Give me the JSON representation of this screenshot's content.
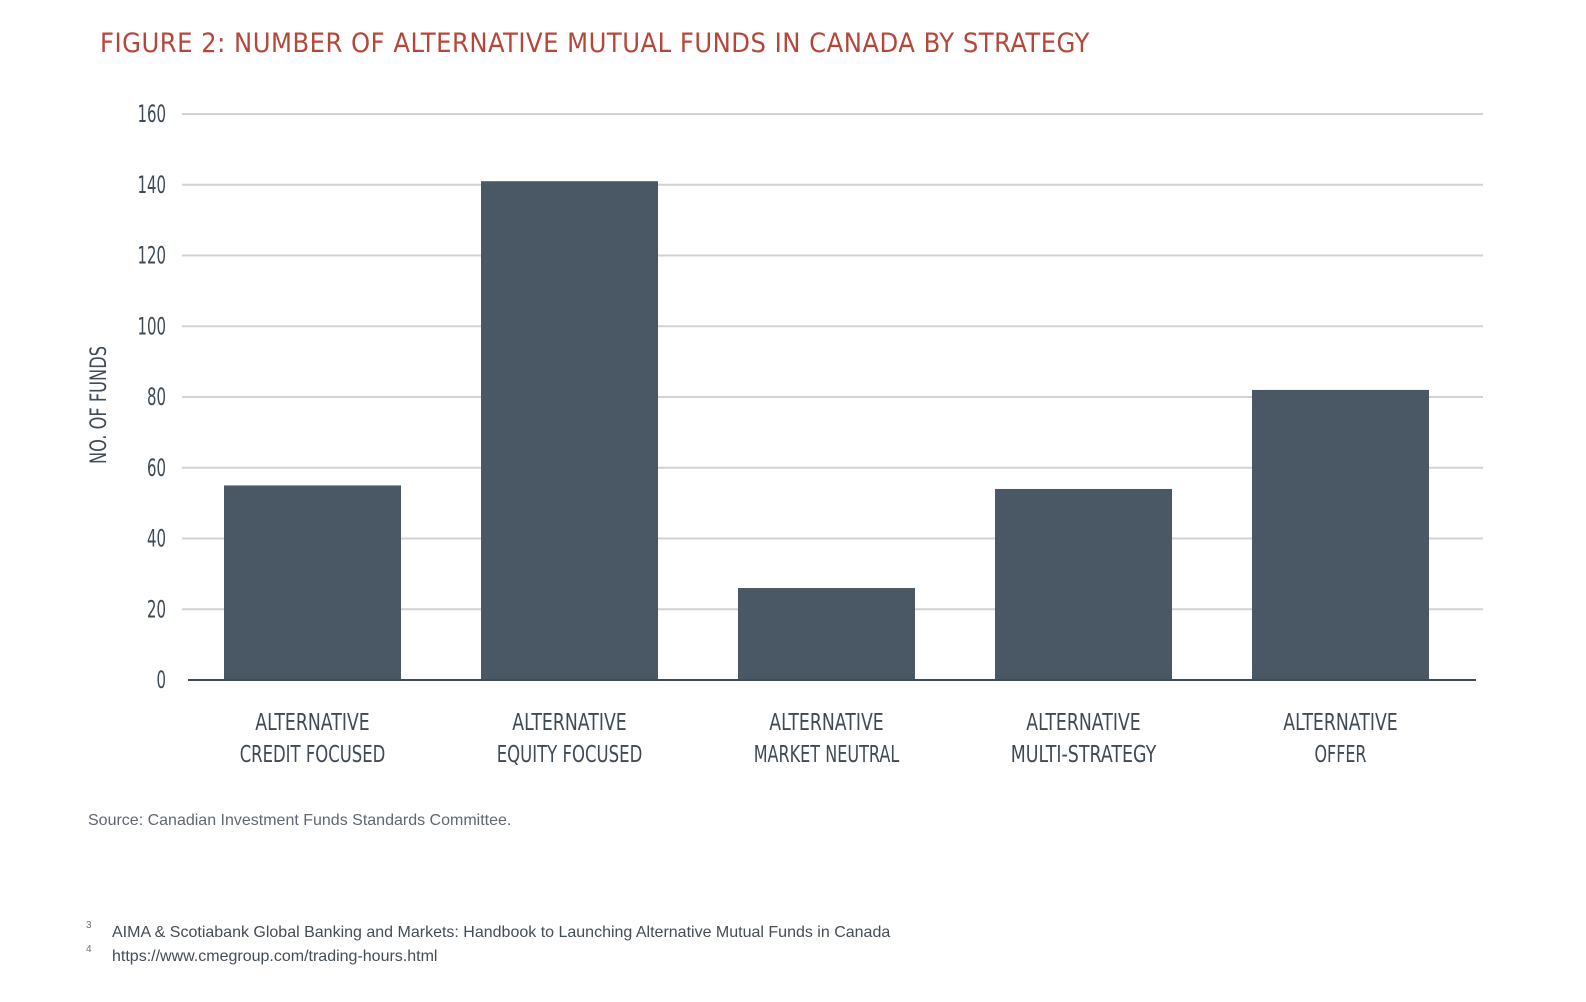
{
  "title": "FIGURE 2: NUMBER OF ALTERNATIVE MUTUAL FUNDS IN CANADA BY STRATEGY",
  "source": "Source: Canadian Investment Funds Standards Committee.",
  "footnotes": [
    {
      "number": "3",
      "text": "AIMA & Scotiabank Global Banking and Markets: Handbook to Launching Alternative Mutual Funds in Canada"
    },
    {
      "number": "4",
      "text": "https://www.cmegroup.com/trading-hours.html"
    }
  ],
  "colors": {
    "title": "#b5473a",
    "bar": "#4a5865",
    "grid": "#d0d3d6",
    "axis": "#3f4a55"
  },
  "chart_data": {
    "type": "bar",
    "title": "FIGURE 2: NUMBER OF ALTERNATIVE MUTUAL FUNDS IN CANADA BY STRATEGY",
    "xlabel": "",
    "ylabel": "NO. OF FUNDS",
    "categories": [
      [
        "ALTERNATIVE",
        "CREDIT FOCUSED"
      ],
      [
        "ALTERNATIVE",
        "EQUITY FOCUSED"
      ],
      [
        "ALTERNATIVE",
        "MARKET NEUTRAL"
      ],
      [
        "ALTERNATIVE",
        "MULTI-STRATEGY"
      ],
      [
        "ALTERNATIVE",
        "OFFER"
      ]
    ],
    "values": [
      55,
      141,
      26,
      54,
      82
    ],
    "ylim": [
      0,
      160
    ],
    "yticks": [
      0,
      20,
      40,
      60,
      80,
      100,
      120,
      140,
      160
    ],
    "grid": true,
    "legend": "none"
  }
}
